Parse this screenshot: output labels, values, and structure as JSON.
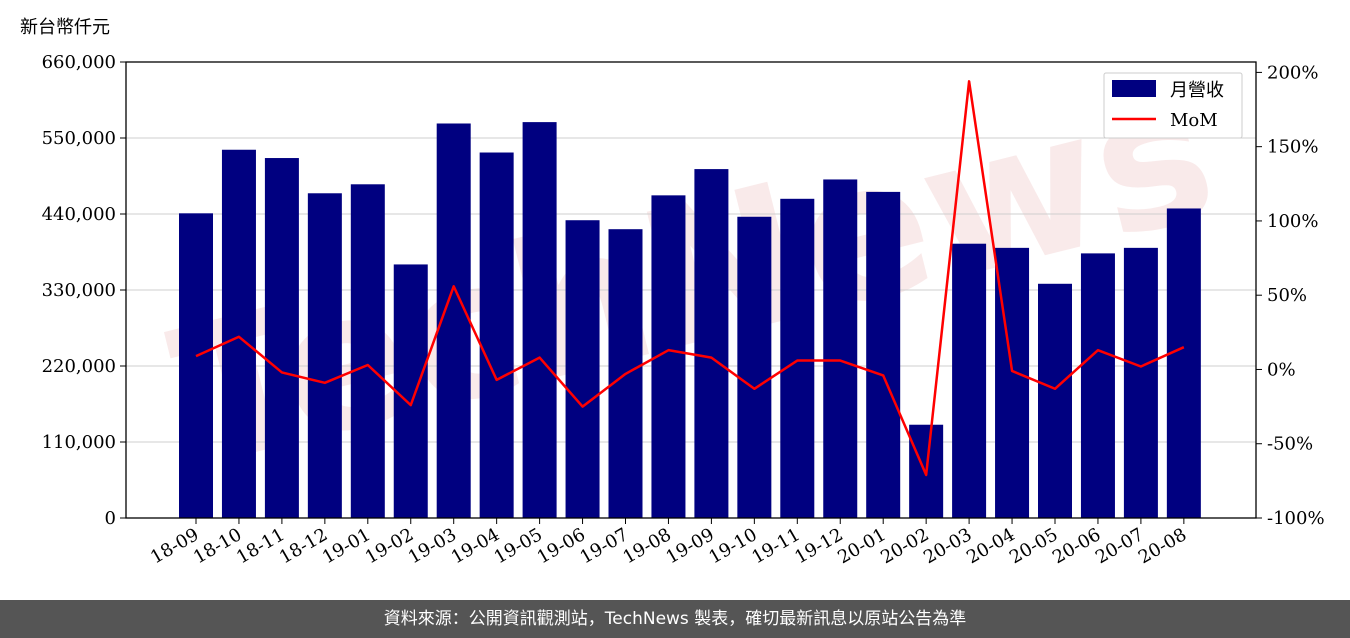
{
  "chart_data": {
    "type": "bar",
    "y_unit_label": "新台幣仟元",
    "categories": [
      "18-09",
      "18-10",
      "18-11",
      "18-12",
      "19-01",
      "19-02",
      "19-03",
      "19-04",
      "19-05",
      "19-06",
      "19-07",
      "19-08",
      "19-09",
      "19-10",
      "19-11",
      "19-12",
      "20-01",
      "20-02",
      "20-03",
      "20-04",
      "20-05",
      "20-06",
      "20-07",
      "20-08"
    ],
    "series": [
      {
        "name": "月營收",
        "axis": "left",
        "color": "#000080",
        "values": [
          441000,
          533000,
          521000,
          470000,
          483000,
          367000,
          571000,
          529000,
          573000,
          431000,
          418000,
          467000,
          505000,
          436000,
          462000,
          490000,
          472000,
          135000,
          397000,
          391000,
          339000,
          383000,
          391000,
          448000
        ]
      },
      {
        "name": "MoM",
        "axis": "right",
        "type": "line",
        "color": "#ff0000",
        "values": [
          9,
          22,
          -2,
          -9,
          3,
          -24,
          56,
          -7,
          8,
          -25,
          -3,
          13,
          8,
          -13,
          6,
          6,
          -4,
          -71,
          194,
          -1,
          -13,
          13,
          2,
          15
        ]
      }
    ],
    "left_axis": {
      "ylim": [
        0,
        660000
      ],
      "ticks": [
        "0",
        "110,000",
        "220,000",
        "330,000",
        "440,000",
        "550,000",
        "660,000"
      ]
    },
    "right_axis": {
      "ylim": [
        -100,
        207
      ],
      "ticks": [
        "-100%",
        "-50%",
        "0%",
        "50%",
        "100%",
        "150%",
        "200%"
      ]
    },
    "grid": true,
    "legend_position": "top-right"
  },
  "watermark": "TechNews",
  "footer": {
    "text": "資料來源：公開資訊觀測站，TechNews 製表，確切最新訊息以原站公告為準"
  }
}
